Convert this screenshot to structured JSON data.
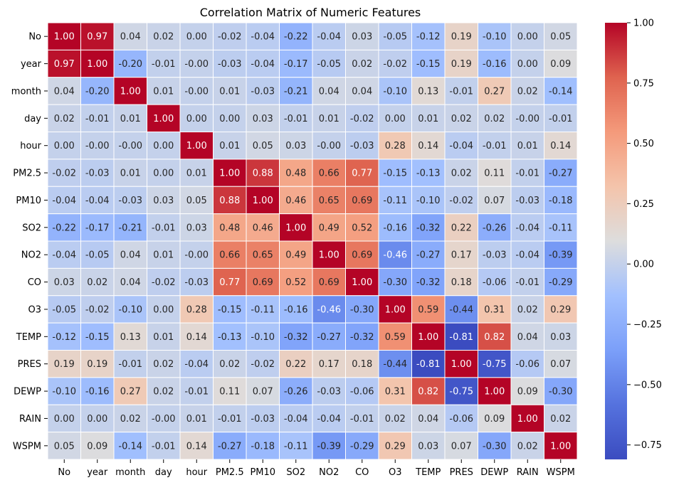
{
  "chart_data": {
    "type": "heatmap",
    "title": "Correlation Matrix of Numeric Features",
    "xlabel": "",
    "ylabel": "",
    "labels": [
      "No",
      "year",
      "month",
      "day",
      "hour",
      "PM2.5",
      "PM10",
      "SO2",
      "NO2",
      "CO",
      "O3",
      "TEMP",
      "PRES",
      "DEWP",
      "RAIN",
      "WSPM"
    ],
    "values": [
      [
        1.0,
        0.97,
        0.04,
        0.02,
        0.0,
        -0.02,
        -0.04,
        -0.22,
        -0.04,
        0.03,
        -0.05,
        -0.12,
        0.19,
        -0.1,
        0.0,
        0.05
      ],
      [
        0.97,
        1.0,
        -0.2,
        -0.01,
        -0.0,
        -0.03,
        -0.04,
        -0.17,
        -0.05,
        0.02,
        -0.02,
        -0.15,
        0.19,
        -0.16,
        0.0,
        0.09
      ],
      [
        0.04,
        -0.2,
        1.0,
        0.01,
        -0.0,
        0.01,
        -0.03,
        -0.21,
        0.04,
        0.04,
        -0.1,
        0.13,
        -0.01,
        0.27,
        0.02,
        -0.14
      ],
      [
        0.02,
        -0.01,
        0.01,
        1.0,
        0.0,
        0.0,
        0.03,
        -0.01,
        0.01,
        -0.02,
        0.0,
        0.01,
        0.02,
        0.02,
        -0.0,
        -0.01
      ],
      [
        0.0,
        -0.0,
        -0.0,
        0.0,
        1.0,
        0.01,
        0.05,
        0.03,
        -0.0,
        -0.03,
        0.28,
        0.14,
        -0.04,
        -0.01,
        0.01,
        0.14
      ],
      [
        -0.02,
        -0.03,
        0.01,
        0.0,
        0.01,
        1.0,
        0.88,
        0.48,
        0.66,
        0.77,
        -0.15,
        -0.13,
        0.02,
        0.11,
        -0.01,
        -0.27
      ],
      [
        -0.04,
        -0.04,
        -0.03,
        0.03,
        0.05,
        0.88,
        1.0,
        0.46,
        0.65,
        0.69,
        -0.11,
        -0.1,
        -0.02,
        0.07,
        -0.03,
        -0.18
      ],
      [
        -0.22,
        -0.17,
        -0.21,
        -0.01,
        0.03,
        0.48,
        0.46,
        1.0,
        0.49,
        0.52,
        -0.16,
        -0.32,
        0.22,
        -0.26,
        -0.04,
        -0.11
      ],
      [
        -0.04,
        -0.05,
        0.04,
        0.01,
        -0.0,
        0.66,
        0.65,
        0.49,
        1.0,
        0.69,
        -0.46,
        -0.27,
        0.17,
        -0.03,
        -0.04,
        -0.39
      ],
      [
        0.03,
        0.02,
        0.04,
        -0.02,
        -0.03,
        0.77,
        0.69,
        0.52,
        0.69,
        1.0,
        -0.3,
        -0.32,
        0.18,
        -0.06,
        -0.01,
        -0.29
      ],
      [
        -0.05,
        -0.02,
        -0.1,
        0.0,
        0.28,
        -0.15,
        -0.11,
        -0.16,
        -0.46,
        -0.3,
        1.0,
        0.59,
        -0.44,
        0.31,
        0.02,
        0.29
      ],
      [
        -0.12,
        -0.15,
        0.13,
        0.01,
        0.14,
        -0.13,
        -0.1,
        -0.32,
        -0.27,
        -0.32,
        0.59,
        1.0,
        -0.81,
        0.82,
        0.04,
        0.03
      ],
      [
        0.19,
        0.19,
        -0.01,
        0.02,
        -0.04,
        0.02,
        -0.02,
        0.22,
        0.17,
        0.18,
        -0.44,
        -0.81,
        1.0,
        -0.75,
        -0.06,
        0.07
      ],
      [
        -0.1,
        -0.16,
        0.27,
        0.02,
        -0.01,
        0.11,
        0.07,
        -0.26,
        -0.03,
        -0.06,
        0.31,
        0.82,
        -0.75,
        1.0,
        0.09,
        -0.3
      ],
      [
        0.0,
        0.0,
        0.02,
        -0.0,
        0.01,
        -0.01,
        -0.03,
        -0.04,
        -0.04,
        -0.01,
        0.02,
        0.04,
        -0.06,
        0.09,
        1.0,
        0.02
      ],
      [
        0.05,
        0.09,
        -0.14,
        -0.01,
        0.14,
        -0.27,
        -0.18,
        -0.11,
        -0.39,
        -0.29,
        0.29,
        0.03,
        0.07,
        -0.3,
        0.02,
        1.0
      ]
    ],
    "value_format": "0.00",
    "colormap": "coolwarm",
    "color_range": [
      -0.81,
      1.0
    ],
    "colorbar_ticks": [
      -0.75,
      -0.5,
      -0.25,
      0.0,
      0.25,
      0.5,
      0.75,
      1.0
    ],
    "colorbar_tick_labels": [
      "−0.75",
      "−0.50",
      "−0.25",
      "0.00",
      "0.25",
      "0.50",
      "0.75",
      "1.00"
    ],
    "grid": false,
    "cell_border_color": "#ffffff",
    "legend": "colorbar-right"
  }
}
